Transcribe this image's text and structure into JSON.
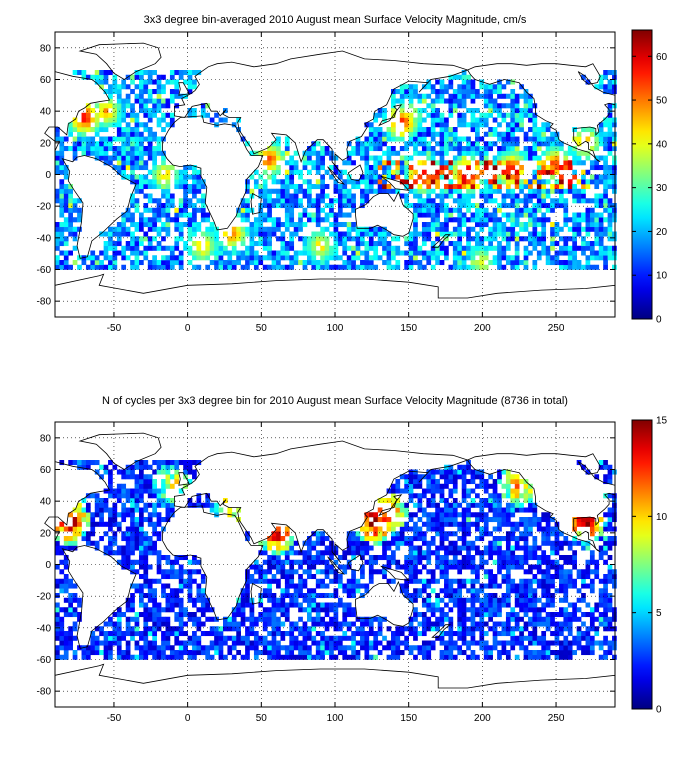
{
  "chart_data": [
    {
      "type": "heatmap",
      "title": "3x3 degree bin-averaged 2010 August mean Surface Velocity Magnitude, cm/s",
      "bin_size_deg": 3,
      "xlim": [
        -90,
        290
      ],
      "ylim": [
        -90,
        90
      ],
      "x_ticks": [
        -50,
        0,
        50,
        100,
        150,
        200,
        250
      ],
      "y_ticks": [
        80,
        60,
        40,
        20,
        0,
        -20,
        -40,
        -60,
        -80
      ],
      "grid": true,
      "grid_style": "dotted",
      "colorbar": {
        "min": 0,
        "max": 66,
        "ticks": [
          0,
          10,
          20,
          30,
          40,
          50,
          60
        ],
        "colormap": "jet",
        "placement": "right"
      },
      "coverage_lat": [
        -60,
        65
      ],
      "typical_value": 15,
      "hotspots": [
        {
          "lon": 160,
          "lat": 0,
          "value": 62
        },
        {
          "lon": 190,
          "lat": 0,
          "value": 64
        },
        {
          "lon": 220,
          "lat": 3,
          "value": 60
        },
        {
          "lon": 250,
          "lat": 6,
          "value": 56
        },
        {
          "lon": 145,
          "lat": 33,
          "value": 58
        },
        {
          "lon": 150,
          "lat": 38,
          "value": 42
        },
        {
          "lon": -70,
          "lat": 36,
          "value": 60
        },
        {
          "lon": -55,
          "lat": 40,
          "value": 48
        },
        {
          "lon": 30,
          "lat": -37,
          "value": 52
        },
        {
          "lon": 55,
          "lat": 10,
          "value": 55
        },
        {
          "lon": -15,
          "lat": 0,
          "value": 45
        },
        {
          "lon": 10,
          "lat": -45,
          "value": 46
        },
        {
          "lon": 90,
          "lat": -45,
          "value": 44
        },
        {
          "lon": 200,
          "lat": -55,
          "value": 40
        },
        {
          "lon": 270,
          "lat": 20,
          "value": 50
        }
      ]
    },
    {
      "type": "heatmap",
      "title": "N of cycles per 3x3 degree bin for 2010 August mean Surface Velocity Magnitude (8736 in total)",
      "bin_size_deg": 3,
      "xlim": [
        -90,
        290
      ],
      "ylim": [
        -90,
        90
      ],
      "x_ticks": [
        -50,
        0,
        50,
        100,
        150,
        200,
        250
      ],
      "y_ticks": [
        80,
        60,
        40,
        20,
        0,
        -20,
        -40,
        -60,
        -80
      ],
      "grid": true,
      "grid_style": "dotted",
      "colorbar": {
        "min": 0,
        "max": 15,
        "ticks": [
          0,
          5,
          10,
          15
        ],
        "colormap": "jet",
        "placement": "right"
      },
      "total_cycles": 8736,
      "coverage_lat": [
        -60,
        65
      ],
      "typical_value": 2,
      "hotspots": [
        {
          "lon": 127,
          "lat": 27,
          "value": 14
        },
        {
          "lon": 135,
          "lat": 32,
          "value": 12
        },
        {
          "lon": 60,
          "lat": 20,
          "value": 13
        },
        {
          "lon": -80,
          "lat": 27,
          "value": 14
        },
        {
          "lon": 270,
          "lat": 27,
          "value": 14
        },
        {
          "lon": 225,
          "lat": 50,
          "value": 10
        },
        {
          "lon": 30,
          "lat": 35,
          "value": 9
        },
        {
          "lon": -10,
          "lat": 50,
          "value": 8
        }
      ]
    }
  ]
}
